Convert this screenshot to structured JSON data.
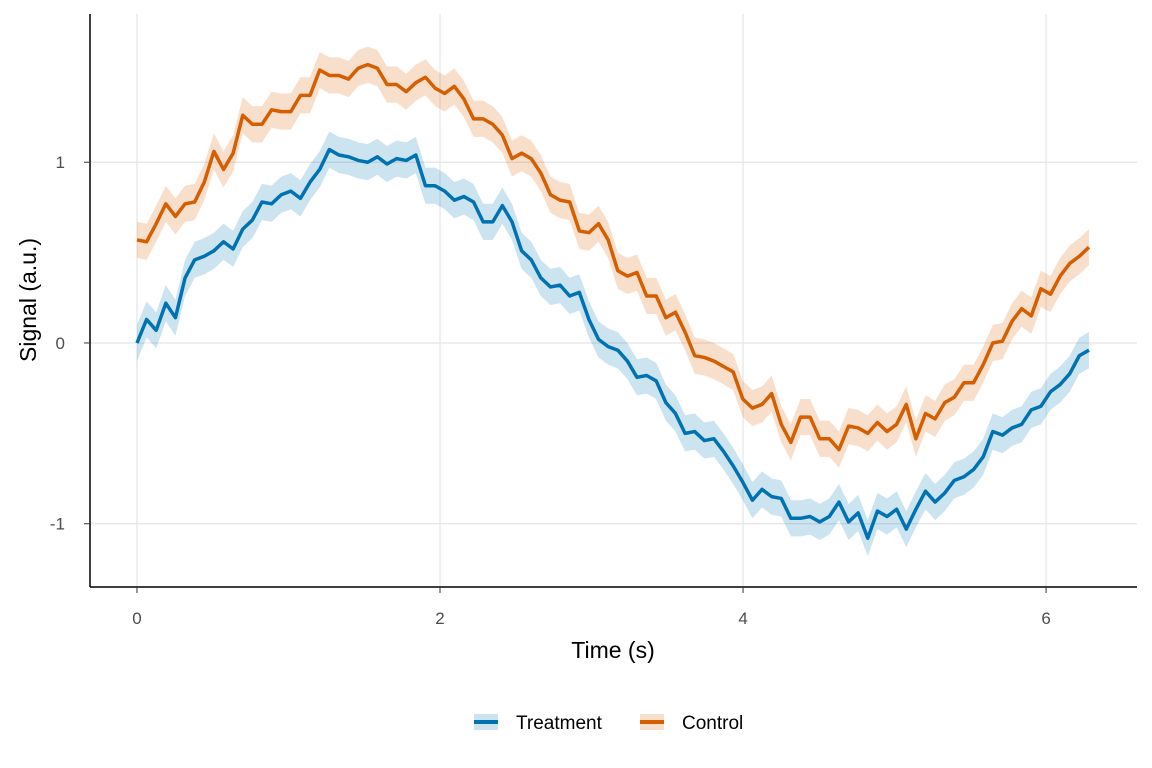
{
  "chart_data": {
    "type": "line",
    "title": "",
    "xlabel": "Time (s)",
    "ylabel": "Signal (a.u.)",
    "xlim": [
      -0.31,
      6.6
    ],
    "ylim": [
      -1.35,
      1.82
    ],
    "x_range": [
      0,
      6.283
    ],
    "xticks": [
      0,
      2,
      4,
      6
    ],
    "xtick_labels": [
      "0",
      "2",
      "4",
      "6"
    ],
    "yticks": [
      -1,
      0,
      1
    ],
    "ytick_labels": [
      "-1",
      "0",
      "1"
    ],
    "grid": true,
    "legend_position": "bottom",
    "ribbon_halfwidth": 0.1,
    "series": [
      {
        "name": "Treatment",
        "color": "#0072B2",
        "values": [
          0,
          0.13,
          0.07,
          0.22,
          0.14,
          0.36,
          0.46,
          0.48,
          0.51,
          0.56,
          0.52,
          0.63,
          0.68,
          0.78,
          0.77,
          0.82,
          0.84,
          0.8,
          0.89,
          0.96,
          1.07,
          1.04,
          1.03,
          1.01,
          1.0,
          1.03,
          0.99,
          1.02,
          1.01,
          1.04,
          0.87,
          0.87,
          0.84,
          0.79,
          0.81,
          0.78,
          0.67,
          0.67,
          0.76,
          0.67,
          0.51,
          0.46,
          0.36,
          0.31,
          0.32,
          0.26,
          0.28,
          0.13,
          0.02,
          -0.02,
          -0.04,
          -0.1,
          -0.19,
          -0.18,
          -0.21,
          -0.33,
          -0.39,
          -0.5,
          -0.49,
          -0.54,
          -0.53,
          -0.6,
          -0.68,
          -0.77,
          -0.87,
          -0.81,
          -0.85,
          -0.86,
          -0.97,
          -0.97,
          -0.96,
          -0.99,
          -0.96,
          -0.88,
          -0.99,
          -0.94,
          -1.08,
          -0.93,
          -0.96,
          -0.92,
          -1.03,
          -0.92,
          -0.82,
          -0.88,
          -0.83,
          -0.76,
          -0.74,
          -0.7,
          -0.63,
          -0.49,
          -0.51,
          -0.47,
          -0.45,
          -0.37,
          -0.35,
          -0.27,
          -0.23,
          -0.17,
          -0.07,
          -0.04
        ]
      },
      {
        "name": "Control",
        "color": "#D55E00",
        "values": [
          0.57,
          0.56,
          0.66,
          0.77,
          0.7,
          0.77,
          0.78,
          0.89,
          1.06,
          0.96,
          1.05,
          1.26,
          1.21,
          1.21,
          1.29,
          1.28,
          1.28,
          1.37,
          1.37,
          1.51,
          1.48,
          1.48,
          1.46,
          1.52,
          1.54,
          1.52,
          1.43,
          1.43,
          1.39,
          1.44,
          1.47,
          1.41,
          1.38,
          1.42,
          1.35,
          1.24,
          1.24,
          1.21,
          1.15,
          1.02,
          1.05,
          1.02,
          0.94,
          0.82,
          0.79,
          0.78,
          0.62,
          0.61,
          0.66,
          0.57,
          0.4,
          0.37,
          0.39,
          0.26,
          0.26,
          0.14,
          0.17,
          0.06,
          -0.07,
          -0.08,
          -0.1,
          -0.13,
          -0.16,
          -0.31,
          -0.36,
          -0.34,
          -0.28,
          -0.45,
          -0.55,
          -0.41,
          -0.41,
          -0.53,
          -0.53,
          -0.59,
          -0.46,
          -0.47,
          -0.5,
          -0.44,
          -0.49,
          -0.45,
          -0.34,
          -0.53,
          -0.39,
          -0.42,
          -0.33,
          -0.3,
          -0.22,
          -0.22,
          -0.12,
          0,
          0.01,
          0.12,
          0.19,
          0.15,
          0.3,
          0.27,
          0.37,
          0.44,
          0.48,
          0.53
        ]
      }
    ]
  }
}
